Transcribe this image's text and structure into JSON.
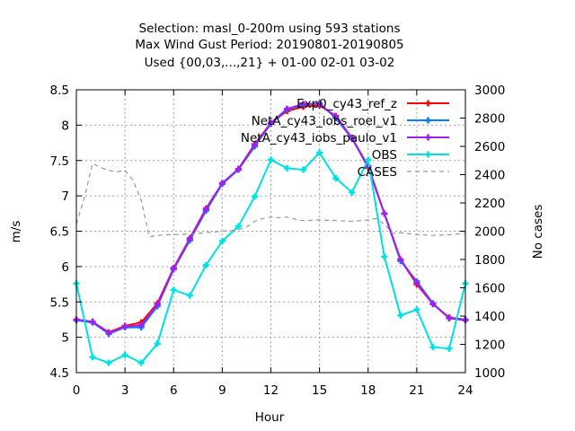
{
  "chart_data": {
    "type": "line",
    "title_lines": [
      "Selection: masl_0-200m using   593 stations",
      "Max Wind Gust   Period: 20190801-20190805",
      "Used {00,03,...,21} + 01-00 02-01 03-02"
    ],
    "xlabel": "Hour",
    "ylabel": "m/s",
    "y2label": "No cases",
    "xlim": [
      0,
      24
    ],
    "ylim": [
      4.5,
      8.5
    ],
    "y2lim": [
      1000,
      3000
    ],
    "x_ticks": [
      "0",
      "3",
      "6",
      "9",
      "12",
      "15",
      "18",
      "21",
      "24"
    ],
    "y_ticks": [
      "4.5",
      "5",
      "5.5",
      "6",
      "6.5",
      "7",
      "7.5",
      "8",
      "8.5"
    ],
    "y2_ticks": [
      "1000",
      "1200",
      "1400",
      "1600",
      "1800",
      "2000",
      "2200",
      "2400",
      "2600",
      "2800",
      "3000"
    ],
    "grid": true,
    "legend_position": "top-right",
    "x": [
      0,
      1,
      2,
      3,
      4,
      5,
      6,
      7,
      8,
      9,
      10,
      11,
      12,
      13,
      14,
      15,
      16,
      17,
      18,
      19,
      20,
      21,
      22,
      23,
      24
    ],
    "series": [
      {
        "name": "Exp0_cy43_ref_z",
        "color": "#ff0000",
        "axis": "left",
        "style": "line-points",
        "values": [
          5.25,
          5.22,
          5.07,
          5.16,
          5.21,
          5.48,
          5.98,
          6.4,
          6.82,
          7.18,
          7.38,
          7.73,
          8.03,
          8.2,
          8.26,
          8.28,
          8.13,
          7.82,
          7.4,
          6.75,
          6.1,
          5.75,
          5.47,
          5.28,
          5.25
        ]
      },
      {
        "name": "NetA_cy43_iobs_roel_v1",
        "color": "#0080ff",
        "axis": "left",
        "style": "line-points",
        "values": [
          5.24,
          5.21,
          5.05,
          5.14,
          5.14,
          5.44,
          5.96,
          6.37,
          6.79,
          7.17,
          7.37,
          7.7,
          8.02,
          8.22,
          8.29,
          8.31,
          8.1,
          7.81,
          7.42,
          6.75,
          6.08,
          5.79,
          5.48,
          5.27,
          5.25
        ]
      },
      {
        "name": "NetA_cy43_iobs_paulo_v1",
        "color": "#a020f0",
        "axis": "left",
        "style": "line-points",
        "values": [
          5.25,
          5.22,
          5.06,
          5.15,
          5.17,
          5.46,
          5.97,
          6.39,
          6.81,
          7.18,
          7.38,
          7.72,
          8.03,
          8.23,
          8.3,
          8.3,
          8.12,
          7.82,
          7.42,
          6.75,
          6.1,
          5.77,
          5.47,
          5.27,
          5.24
        ]
      },
      {
        "name": "OBS",
        "color": "#00e0e0",
        "axis": "left",
        "style": "line-points",
        "values": [
          5.76,
          4.72,
          4.64,
          4.75,
          4.64,
          4.91,
          5.67,
          5.59,
          6.02,
          6.36,
          6.57,
          6.99,
          7.51,
          7.39,
          7.37,
          7.61,
          7.25,
          7.05,
          7.51,
          6.14,
          5.31,
          5.39,
          4.86,
          4.84,
          5.76
        ]
      },
      {
        "name": "CASES",
        "color": "#999999",
        "axis": "right",
        "style": "dashed",
        "x": [
          0,
          0.5,
          1,
          1.5,
          2,
          2.5,
          3,
          3.5,
          4,
          4.5,
          5,
          5.5,
          6,
          7,
          8,
          9,
          10,
          10.5,
          11,
          11.5,
          12,
          12.5,
          13,
          13.5,
          14,
          15,
          16,
          17,
          18,
          18.5,
          19,
          19.5,
          20,
          21,
          22,
          23,
          24
        ],
        "values": [
          2050,
          2240,
          2480,
          2450,
          2430,
          2420,
          2430,
          2360,
          2220,
          1960,
          1970,
          1975,
          1975,
          1980,
          1990,
          2000,
          2010,
          2030,
          2070,
          2090,
          2100,
          2095,
          2100,
          2085,
          2075,
          2080,
          2075,
          2070,
          2080,
          2090,
          2050,
          1985,
          1990,
          1975,
          1970,
          1975,
          1985
        ]
      }
    ]
  }
}
